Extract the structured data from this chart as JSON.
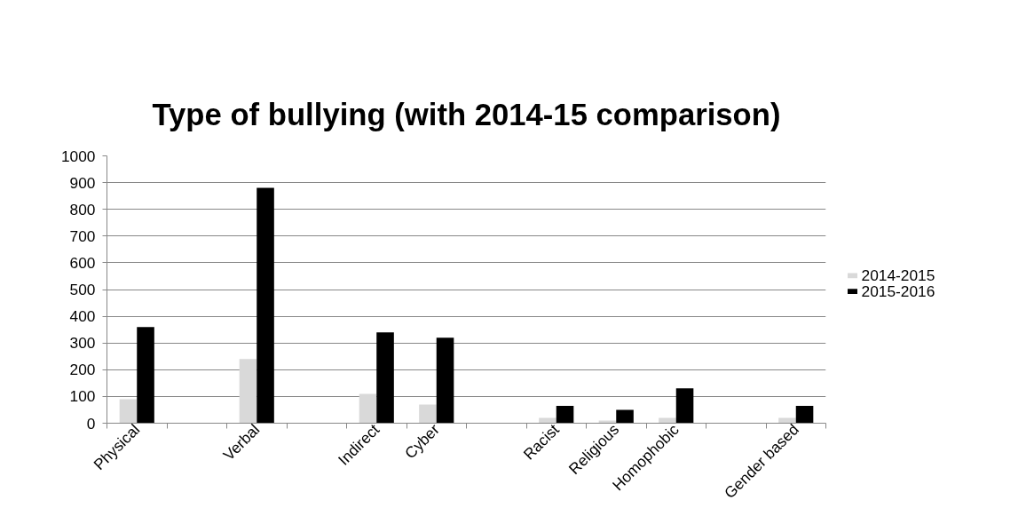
{
  "chart_data": {
    "type": "bar",
    "title": "Type of bullying (with 2014-15 comparison)",
    "categories": [
      "Physical",
      null,
      "Verbal",
      null,
      "Indirect",
      "Cyber",
      null,
      "Racist",
      "Religious",
      "Homophobic",
      null,
      "Gender based"
    ],
    "series": [
      {
        "name": "2014-2015",
        "color": "#d9d9d9",
        "values": [
          90,
          null,
          240,
          null,
          110,
          70,
          null,
          20,
          10,
          20,
          null,
          20
        ]
      },
      {
        "name": "2015-2016",
        "color": "#000000",
        "values": [
          360,
          null,
          880,
          null,
          340,
          320,
          null,
          65,
          50,
          130,
          null,
          65
        ]
      }
    ],
    "ylim": [
      0,
      1000
    ],
    "yticks": [
      0,
      100,
      200,
      300,
      400,
      500,
      600,
      700,
      800,
      900,
      1000
    ],
    "grid": "y",
    "legend": "right"
  }
}
